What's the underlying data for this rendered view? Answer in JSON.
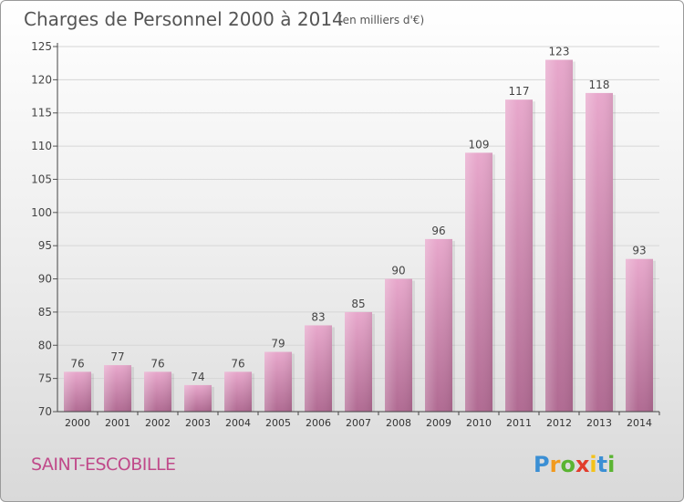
{
  "chart_data": {
    "type": "bar",
    "title": "Charges de Personnel 2000 à 2014",
    "subtitle": "(en milliers d'€)",
    "categories": [
      "2000",
      "2001",
      "2002",
      "2003",
      "2004",
      "2005",
      "2006",
      "2007",
      "2008",
      "2009",
      "2010",
      "2011",
      "2012",
      "2013",
      "2014"
    ],
    "values": [
      76,
      77,
      76,
      74,
      76,
      79,
      83,
      85,
      90,
      96,
      109,
      117,
      123,
      118,
      93
    ],
    "ylim": [
      70,
      125
    ],
    "yticks": [
      70,
      75,
      80,
      85,
      90,
      95,
      100,
      105,
      110,
      115,
      120,
      125
    ],
    "xlabel": "",
    "ylabel": "",
    "grid": true,
    "colors": {
      "bar_light": "#e8a8cc",
      "bar_dark": "#b06a92",
      "title": "#555555",
      "grid": "#d6d6d6"
    }
  },
  "commune": {
    "name": "SAINT-ESCOBILLE",
    "color": "#c04a8a"
  },
  "logo": {
    "text": "Proxiti"
  }
}
